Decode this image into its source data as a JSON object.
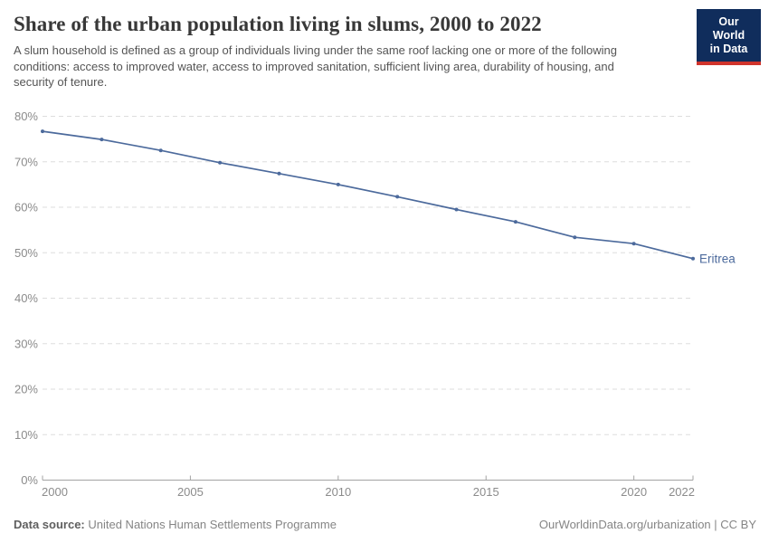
{
  "header": {
    "title": "Share of the urban population living in slums, 2000 to 2022",
    "subtitle": "A slum household is defined as a group of individuals living under the same roof lacking one or more of the following conditions: access to improved water, access to improved sanitation, sufficient living area, durability of housing, and security of tenure.",
    "logo": {
      "line1": "Our World",
      "line2": "in Data",
      "bg_color": "#102d5c",
      "accent_color": "#d0342c"
    }
  },
  "footer": {
    "source_label": "Data source:",
    "source_value": " United Nations Human Settlements Programme",
    "link": "OurWorldinData.org/urbanization | CC BY"
  },
  "chart_data": {
    "type": "line",
    "title": "Share of the urban population living in slums, 2000 to 2022",
    "x": [
      2000,
      2002,
      2004,
      2006,
      2008,
      2010,
      2012,
      2014,
      2016,
      2018,
      2020,
      2022
    ],
    "series": [
      {
        "name": "Eritrea",
        "values": [
          76.7,
          74.9,
          72.5,
          69.8,
          67.4,
          65.0,
          62.3,
          59.5,
          56.8,
          53.4,
          52.0,
          48.7
        ]
      }
    ],
    "xlim": [
      2000,
      2022
    ],
    "ylim": [
      0,
      80
    ],
    "xticks": [
      2000,
      2005,
      2010,
      2015,
      2020,
      2022
    ],
    "yticks": [
      0,
      10,
      20,
      30,
      40,
      50,
      60,
      70,
      80
    ],
    "ytick_suffix": "%",
    "grid": "horizontal-dashed",
    "legend_position": "end-of-line-label",
    "line_color": "#4c6a9c",
    "grid_color": "#dddddd",
    "axis_color": "#a3a3a3",
    "tick_label_color": "#8b8b8b"
  }
}
